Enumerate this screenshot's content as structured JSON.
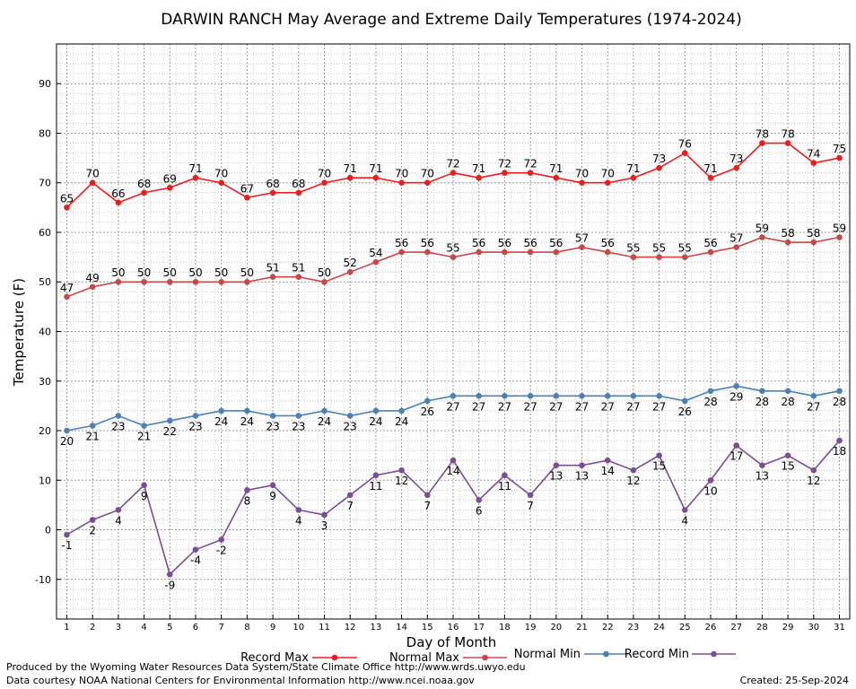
{
  "chart_data": {
    "type": "line",
    "title": "DARWIN RANCH May Average and Extreme Daily Temperatures (1974-2024)",
    "xlabel": "Day of Month",
    "ylabel": "Temperature (F)",
    "ylim": [
      -18,
      98
    ],
    "xlim": [
      0.6,
      31.4
    ],
    "yticks": [
      -10,
      0,
      10,
      20,
      30,
      40,
      50,
      60,
      70,
      80,
      90
    ],
    "x": [
      1,
      2,
      3,
      4,
      5,
      6,
      7,
      8,
      9,
      10,
      11,
      12,
      13,
      14,
      15,
      16,
      17,
      18,
      19,
      20,
      21,
      22,
      23,
      24,
      25,
      26,
      27,
      28,
      29,
      30,
      31
    ],
    "grid": "on (major and minor dotted)",
    "legend_placement": "bottom",
    "series": [
      {
        "name": "Record Max",
        "color": "#ee1c1c",
        "label_position": "above",
        "values": [
          65,
          70,
          66,
          68,
          69,
          71,
          70,
          67,
          68,
          68,
          70,
          71,
          71,
          70,
          70,
          72,
          71,
          72,
          72,
          71,
          70,
          70,
          71,
          73,
          76,
          71,
          73,
          78,
          78,
          74,
          75
        ]
      },
      {
        "name": "Normal Max",
        "color": "#c84848",
        "label_position": "above",
        "values": [
          47,
          49,
          50,
          50,
          50,
          50,
          50,
          50,
          51,
          51,
          50,
          52,
          54,
          56,
          56,
          55,
          56,
          56,
          56,
          56,
          57,
          56,
          55,
          55,
          55,
          56,
          57,
          59,
          58,
          58,
          59
        ]
      },
      {
        "name": "Normal Min",
        "color": "#4a82b8",
        "label_position": "below",
        "values": [
          20,
          21,
          23,
          21,
          22,
          23,
          24,
          24,
          23,
          23,
          24,
          23,
          24,
          24,
          26,
          27,
          27,
          27,
          27,
          27,
          27,
          27,
          27,
          27,
          26,
          28,
          29,
          28,
          28,
          27,
          28
        ]
      },
      {
        "name": "Record Min",
        "color": "#7a4d95",
        "label_position": "below",
        "values": [
          -1,
          2,
          4,
          9,
          -9,
          -4,
          -2,
          8,
          9,
          4,
          3,
          7,
          11,
          12,
          7,
          14,
          6,
          11,
          7,
          13,
          13,
          14,
          12,
          15,
          4,
          10,
          17,
          13,
          15,
          12,
          18
        ]
      }
    ]
  },
  "footer": {
    "credit_line1": "Produced by the Wyoming Water Resources Data System/State Climate Office http://www.wrds.uwyo.edu",
    "credit_line2": "Data courtesy NOAA National Centers for Environmental Information http://www.ncei.noaa.gov",
    "created": "Created:  25-Sep-2024"
  }
}
